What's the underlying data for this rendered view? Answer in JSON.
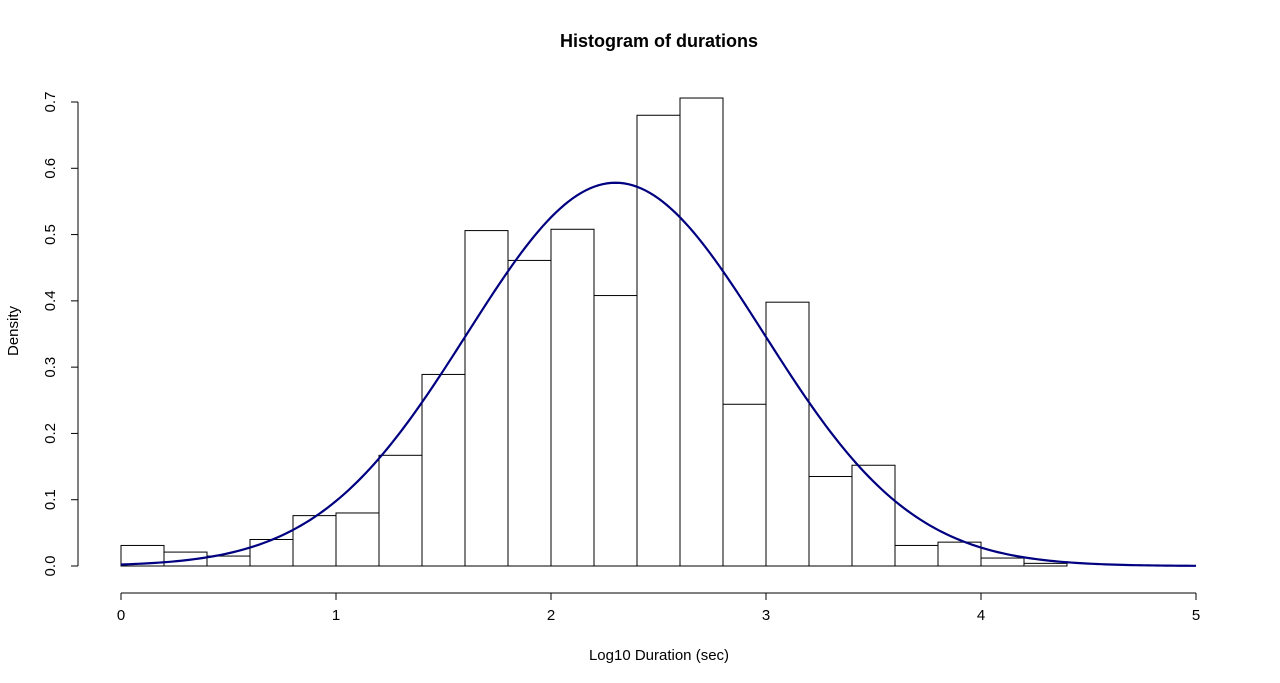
{
  "chart_data": {
    "type": "bar",
    "title": "Histogram of durations",
    "xlabel": "Log10 Duration (sec)",
    "ylabel": "Density",
    "xlim": [
      0,
      5
    ],
    "ylim": [
      0,
      0.7
    ],
    "x_ticks": [
      "0",
      "1",
      "2",
      "3",
      "4",
      "5"
    ],
    "y_ticks": [
      "0.0",
      "0.1",
      "0.2",
      "0.3",
      "0.4",
      "0.5",
      "0.6",
      "0.7"
    ],
    "bin_width": 0.2,
    "bins": [
      {
        "x0": 0.0,
        "x1": 0.2,
        "density": 0.031
      },
      {
        "x0": 0.2,
        "x1": 0.4,
        "density": 0.021
      },
      {
        "x0": 0.4,
        "x1": 0.6,
        "density": 0.015
      },
      {
        "x0": 0.6,
        "x1": 0.8,
        "density": 0.04
      },
      {
        "x0": 0.8,
        "x1": 1.0,
        "density": 0.076
      },
      {
        "x0": 1.0,
        "x1": 1.2,
        "density": 0.08
      },
      {
        "x0": 1.2,
        "x1": 1.4,
        "density": 0.167
      },
      {
        "x0": 1.4,
        "x1": 1.6,
        "density": 0.289
      },
      {
        "x0": 1.6,
        "x1": 1.8,
        "density": 0.506
      },
      {
        "x0": 1.8,
        "x1": 2.0,
        "density": 0.461
      },
      {
        "x0": 2.0,
        "x1": 2.2,
        "density": 0.508
      },
      {
        "x0": 2.2,
        "x1": 2.4,
        "density": 0.408
      },
      {
        "x0": 2.4,
        "x1": 2.6,
        "density": 0.68
      },
      {
        "x0": 2.6,
        "x1": 2.8,
        "density": 0.706
      },
      {
        "x0": 2.8,
        "x1": 3.0,
        "density": 0.244
      },
      {
        "x0": 3.0,
        "x1": 3.2,
        "density": 0.398
      },
      {
        "x0": 3.2,
        "x1": 3.4,
        "density": 0.135
      },
      {
        "x0": 3.4,
        "x1": 3.6,
        "density": 0.152
      },
      {
        "x0": 3.6,
        "x1": 3.8,
        "density": 0.031
      },
      {
        "x0": 3.8,
        "x1": 4.0,
        "density": 0.036
      },
      {
        "x0": 4.0,
        "x1": 4.2,
        "density": 0.012
      },
      {
        "x0": 4.2,
        "x1": 4.4,
        "density": 0.004
      }
    ],
    "density_curve": {
      "mean": 2.3,
      "sd": 0.69,
      "color": "#000080"
    },
    "grid": false
  }
}
